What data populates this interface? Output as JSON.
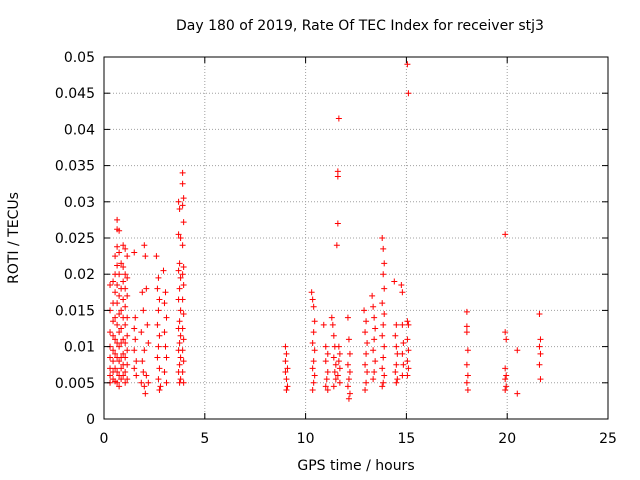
{
  "chart_data": {
    "type": "scatter",
    "title": "Day 180 of 2019, Rate Of TEC Index for receiver stj3",
    "xlabel": "GPS time / hours",
    "ylabel": "ROTI / TECUs",
    "xlim": [
      0,
      25
    ],
    "ylim": [
      0,
      0.05
    ],
    "grid": true,
    "marker": "+",
    "series_color": "#ff0000",
    "x_ticks": [
      "0",
      "5",
      "10",
      "15",
      "20",
      "25"
    ],
    "y_ticks": [
      "0",
      "0.005",
      "0.01",
      "0.015",
      "0.02",
      "0.025",
      "0.03",
      "0.035",
      "0.04",
      "0.045",
      "0.05"
    ],
    "points": [
      [
        0.3,
        0.0185
      ],
      [
        0.3,
        0.015
      ],
      [
        0.3,
        0.012
      ],
      [
        0.3,
        0.01
      ],
      [
        0.3,
        0.0085
      ],
      [
        0.3,
        0.007
      ],
      [
        0.3,
        0.006
      ],
      [
        0.3,
        0.005
      ],
      [
        0.45,
        0.019
      ],
      [
        0.45,
        0.016
      ],
      [
        0.45,
        0.0135
      ],
      [
        0.45,
        0.0115
      ],
      [
        0.45,
        0.0095
      ],
      [
        0.45,
        0.008
      ],
      [
        0.45,
        0.0065
      ],
      [
        0.45,
        0.0055
      ],
      [
        0.55,
        0.0225
      ],
      [
        0.55,
        0.02
      ],
      [
        0.55,
        0.0175
      ],
      [
        0.55,
        0.014
      ],
      [
        0.55,
        0.011
      ],
      [
        0.55,
        0.009
      ],
      [
        0.55,
        0.007
      ],
      [
        0.55,
        0.0052
      ],
      [
        0.65,
        0.0275
      ],
      [
        0.65,
        0.0262
      ],
      [
        0.65,
        0.0238
      ],
      [
        0.65,
        0.0212
      ],
      [
        0.65,
        0.0185
      ],
      [
        0.65,
        0.016
      ],
      [
        0.65,
        0.013
      ],
      [
        0.65,
        0.0105
      ],
      [
        0.65,
        0.0085
      ],
      [
        0.65,
        0.0065
      ],
      [
        0.65,
        0.005
      ],
      [
        0.75,
        0.026
      ],
      [
        0.75,
        0.023
      ],
      [
        0.75,
        0.02
      ],
      [
        0.75,
        0.017
      ],
      [
        0.75,
        0.0145
      ],
      [
        0.75,
        0.012
      ],
      [
        0.75,
        0.01
      ],
      [
        0.75,
        0.008
      ],
      [
        0.75,
        0.006
      ],
      [
        0.75,
        0.0045
      ],
      [
        0.85,
        0.0215
      ],
      [
        0.85,
        0.018
      ],
      [
        0.85,
        0.015
      ],
      [
        0.85,
        0.0125
      ],
      [
        0.85,
        0.0105
      ],
      [
        0.85,
        0.0085
      ],
      [
        0.85,
        0.007
      ],
      [
        0.85,
        0.0055
      ],
      [
        0.95,
        0.024
      ],
      [
        0.95,
        0.021
      ],
      [
        0.95,
        0.019
      ],
      [
        0.95,
        0.0165
      ],
      [
        0.95,
        0.014
      ],
      [
        0.95,
        0.011
      ],
      [
        0.95,
        0.009
      ],
      [
        0.95,
        0.0075
      ],
      [
        0.95,
        0.006
      ],
      [
        1.05,
        0.0235
      ],
      [
        1.05,
        0.02
      ],
      [
        1.05,
        0.018
      ],
      [
        1.05,
        0.0155
      ],
      [
        1.05,
        0.013
      ],
      [
        1.05,
        0.0105
      ],
      [
        1.05,
        0.0085
      ],
      [
        1.05,
        0.0065
      ],
      [
        1.05,
        0.005
      ],
      [
        1.15,
        0.0225
      ],
      [
        1.15,
        0.0195
      ],
      [
        1.15,
        0.017
      ],
      [
        1.15,
        0.014
      ],
      [
        1.15,
        0.0115
      ],
      [
        1.15,
        0.0095
      ],
      [
        1.15,
        0.0075
      ],
      [
        1.15,
        0.0055
      ],
      [
        1.5,
        0.023
      ],
      [
        1.55,
        0.014
      ],
      [
        1.5,
        0.0125
      ],
      [
        1.55,
        0.011
      ],
      [
        1.5,
        0.0095
      ],
      [
        1.6,
        0.008
      ],
      [
        1.5,
        0.007
      ],
      [
        1.6,
        0.006
      ],
      [
        1.9,
        0.0175
      ],
      [
        1.95,
        0.015
      ],
      [
        1.85,
        0.012
      ],
      [
        2.0,
        0.0095
      ],
      [
        1.9,
        0.008
      ],
      [
        1.95,
        0.0065
      ],
      [
        1.85,
        0.005
      ],
      [
        2.0,
        0.0045
      ],
      [
        2.05,
        0.0035
      ],
      [
        2.0,
        0.024
      ],
      [
        2.05,
        0.0225
      ],
      [
        2.1,
        0.018
      ],
      [
        2.15,
        0.013
      ],
      [
        2.2,
        0.0105
      ],
      [
        2.1,
        0.006
      ],
      [
        2.2,
        0.005
      ],
      [
        2.6,
        0.0225
      ],
      [
        2.7,
        0.0195
      ],
      [
        2.65,
        0.018
      ],
      [
        2.75,
        0.0165
      ],
      [
        2.7,
        0.015
      ],
      [
        2.65,
        0.013
      ],
      [
        2.75,
        0.0115
      ],
      [
        2.7,
        0.01
      ],
      [
        2.65,
        0.0085
      ],
      [
        2.75,
        0.007
      ],
      [
        2.7,
        0.0055
      ],
      [
        2.8,
        0.0045
      ],
      [
        2.75,
        0.004
      ],
      [
        2.95,
        0.0205
      ],
      [
        3.05,
        0.0175
      ],
      [
        3.0,
        0.016
      ],
      [
        3.1,
        0.014
      ],
      [
        3.0,
        0.012
      ],
      [
        3.05,
        0.01
      ],
      [
        3.1,
        0.0085
      ],
      [
        3.0,
        0.0065
      ],
      [
        3.1,
        0.005
      ],
      [
        3.7,
        0.03
      ],
      [
        3.75,
        0.029
      ],
      [
        3.7,
        0.0255
      ],
      [
        3.8,
        0.025
      ],
      [
        3.75,
        0.0215
      ],
      [
        3.7,
        0.0205
      ],
      [
        3.8,
        0.0195
      ],
      [
        3.75,
        0.018
      ],
      [
        3.7,
        0.0165
      ],
      [
        3.8,
        0.015
      ],
      [
        3.75,
        0.0135
      ],
      [
        3.7,
        0.0125
      ],
      [
        3.8,
        0.0115
      ],
      [
        3.75,
        0.0105
      ],
      [
        3.7,
        0.0095
      ],
      [
        3.8,
        0.0085
      ],
      [
        3.75,
        0.0075
      ],
      [
        3.7,
        0.0065
      ],
      [
        3.8,
        0.0055
      ],
      [
        3.75,
        0.005
      ],
      [
        3.9,
        0.034
      ],
      [
        3.9,
        0.0325
      ],
      [
        3.95,
        0.0305
      ],
      [
        3.9,
        0.0295
      ],
      [
        3.95,
        0.0272
      ],
      [
        3.9,
        0.024
      ],
      [
        3.95,
        0.021
      ],
      [
        3.9,
        0.02
      ],
      [
        3.95,
        0.0185
      ],
      [
        3.9,
        0.0165
      ],
      [
        3.95,
        0.0145
      ],
      [
        3.9,
        0.0125
      ],
      [
        3.95,
        0.011
      ],
      [
        3.9,
        0.0095
      ],
      [
        3.95,
        0.008
      ],
      [
        3.9,
        0.0065
      ],
      [
        3.95,
        0.005
      ],
      [
        9.0,
        0.01
      ],
      [
        9.05,
        0.009
      ],
      [
        9.0,
        0.008
      ],
      [
        9.1,
        0.007
      ],
      [
        9.0,
        0.0065
      ],
      [
        9.05,
        0.0055
      ],
      [
        9.1,
        0.0045
      ],
      [
        9.05,
        0.004
      ],
      [
        10.3,
        0.0175
      ],
      [
        10.35,
        0.0165
      ],
      [
        10.4,
        0.0155
      ],
      [
        10.45,
        0.0135
      ],
      [
        10.4,
        0.012
      ],
      [
        10.35,
        0.0105
      ],
      [
        10.45,
        0.0095
      ],
      [
        10.4,
        0.008
      ],
      [
        10.35,
        0.007
      ],
      [
        10.45,
        0.006
      ],
      [
        10.4,
        0.005
      ],
      [
        10.35,
        0.004
      ],
      [
        10.9,
        0.013
      ],
      [
        11.0,
        0.01
      ],
      [
        11.1,
        0.009
      ],
      [
        11.0,
        0.008
      ],
      [
        11.1,
        0.0065
      ],
      [
        11.05,
        0.0055
      ],
      [
        11.0,
        0.0045
      ],
      [
        11.1,
        0.004
      ],
      [
        11.3,
        0.014
      ],
      [
        11.35,
        0.013
      ],
      [
        11.4,
        0.0115
      ],
      [
        11.45,
        0.01
      ],
      [
        11.4,
        0.0085
      ],
      [
        11.5,
        0.0075
      ],
      [
        11.45,
        0.0065
      ],
      [
        11.5,
        0.0055
      ],
      [
        11.4,
        0.0045
      ],
      [
        11.65,
        0.0415
      ],
      [
        11.6,
        0.0342
      ],
      [
        11.6,
        0.0335
      ],
      [
        11.6,
        0.027
      ],
      [
        11.55,
        0.024
      ],
      [
        11.65,
        0.01
      ],
      [
        11.7,
        0.009
      ],
      [
        11.65,
        0.008
      ],
      [
        11.7,
        0.007
      ],
      [
        11.6,
        0.006
      ],
      [
        11.7,
        0.005
      ],
      [
        12.1,
        0.014
      ],
      [
        12.15,
        0.011
      ],
      [
        12.2,
        0.009
      ],
      [
        12.1,
        0.0075
      ],
      [
        12.2,
        0.0065
      ],
      [
        12.15,
        0.0055
      ],
      [
        12.1,
        0.0045
      ],
      [
        12.2,
        0.0035
      ],
      [
        12.15,
        0.0028
      ],
      [
        12.9,
        0.015
      ],
      [
        13.0,
        0.0135
      ],
      [
        12.95,
        0.012
      ],
      [
        13.05,
        0.0105
      ],
      [
        13.0,
        0.009
      ],
      [
        12.95,
        0.0075
      ],
      [
        13.05,
        0.0065
      ],
      [
        13.0,
        0.005
      ],
      [
        12.95,
        0.004
      ],
      [
        13.3,
        0.017
      ],
      [
        13.35,
        0.0155
      ],
      [
        13.4,
        0.014
      ],
      [
        13.45,
        0.0125
      ],
      [
        13.4,
        0.011
      ],
      [
        13.35,
        0.0095
      ],
      [
        13.45,
        0.008
      ],
      [
        13.4,
        0.0065
      ],
      [
        13.35,
        0.0055
      ],
      [
        13.8,
        0.025
      ],
      [
        13.85,
        0.0235
      ],
      [
        13.9,
        0.0215
      ],
      [
        13.85,
        0.02
      ],
      [
        13.9,
        0.018
      ],
      [
        13.8,
        0.016
      ],
      [
        13.9,
        0.0145
      ],
      [
        13.85,
        0.013
      ],
      [
        13.8,
        0.0115
      ],
      [
        13.9,
        0.01
      ],
      [
        13.85,
        0.0085
      ],
      [
        13.8,
        0.007
      ],
      [
        13.9,
        0.006
      ],
      [
        13.85,
        0.005
      ],
      [
        13.8,
        0.0045
      ],
      [
        14.4,
        0.019
      ],
      [
        14.5,
        0.013
      ],
      [
        14.45,
        0.0115
      ],
      [
        14.5,
        0.01
      ],
      [
        14.55,
        0.009
      ],
      [
        14.5,
        0.0075
      ],
      [
        14.45,
        0.0065
      ],
      [
        14.55,
        0.0055
      ],
      [
        14.5,
        0.005
      ],
      [
        14.75,
        0.0185
      ],
      [
        14.8,
        0.0175
      ],
      [
        14.8,
        0.013
      ],
      [
        14.85,
        0.0105
      ],
      [
        14.8,
        0.009
      ],
      [
        14.85,
        0.0075
      ],
      [
        14.8,
        0.006
      ],
      [
        15.05,
        0.049
      ],
      [
        15.1,
        0.045
      ],
      [
        15.05,
        0.0135
      ],
      [
        15.1,
        0.013
      ],
      [
        15.05,
        0.011
      ],
      [
        15.1,
        0.0095
      ],
      [
        15.05,
        0.008
      ],
      [
        15.1,
        0.007
      ],
      [
        15.05,
        0.006
      ],
      [
        18.0,
        0.0148
      ],
      [
        18.0,
        0.0128
      ],
      [
        18.0,
        0.012
      ],
      [
        18.05,
        0.0095
      ],
      [
        18.0,
        0.0075
      ],
      [
        18.05,
        0.006
      ],
      [
        18.0,
        0.005
      ],
      [
        18.05,
        0.004
      ],
      [
        19.9,
        0.0255
      ],
      [
        19.9,
        0.012
      ],
      [
        19.95,
        0.011
      ],
      [
        19.9,
        0.007
      ],
      [
        19.95,
        0.006
      ],
      [
        19.9,
        0.0055
      ],
      [
        19.95,
        0.0045
      ],
      [
        19.9,
        0.004
      ],
      [
        20.5,
        0.0095
      ],
      [
        20.5,
        0.0035
      ],
      [
        21.6,
        0.0145
      ],
      [
        21.65,
        0.011
      ],
      [
        21.6,
        0.01
      ],
      [
        21.65,
        0.009
      ],
      [
        21.6,
        0.0075
      ],
      [
        21.65,
        0.0055
      ]
    ]
  }
}
